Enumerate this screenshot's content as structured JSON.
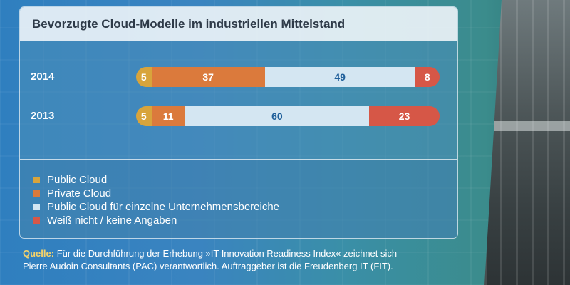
{
  "chart_data": {
    "type": "bar",
    "orientation": "horizontal-stacked",
    "title": "Bevorzugte Cloud-Modelle im industriellen Mittelstand",
    "categories": [
      "2014",
      "2013"
    ],
    "series": [
      {
        "name": "Public Cloud",
        "color": "#d8a43c",
        "values": [
          5,
          5
        ]
      },
      {
        "name": "Private Cloud",
        "color": "#db7a3c",
        "values": [
          37,
          11
        ]
      },
      {
        "name": "Public Cloud für einzelne Unternehmensbereiche",
        "color": "#d4e6f2",
        "values": [
          49,
          60
        ]
      },
      {
        "name": "Weiß nicht / keine Angaben",
        "color": "#d65747",
        "values": [
          8,
          23
        ]
      }
    ],
    "label_colors": [
      "#ffffff",
      "#ffffff",
      "#1f5f9a",
      "#ffffff"
    ],
    "legend_position": "bottom-left"
  },
  "source": {
    "label": "Quelle:",
    "line1": " Für die Durchführung der Erhebung  »IT Innovation Readiness Index« zeichnet sich",
    "line2": "Pierre Audoin Consultants (PAC) verantwortlich. Auftraggeber ist die Freudenberg IT (FIT)."
  }
}
